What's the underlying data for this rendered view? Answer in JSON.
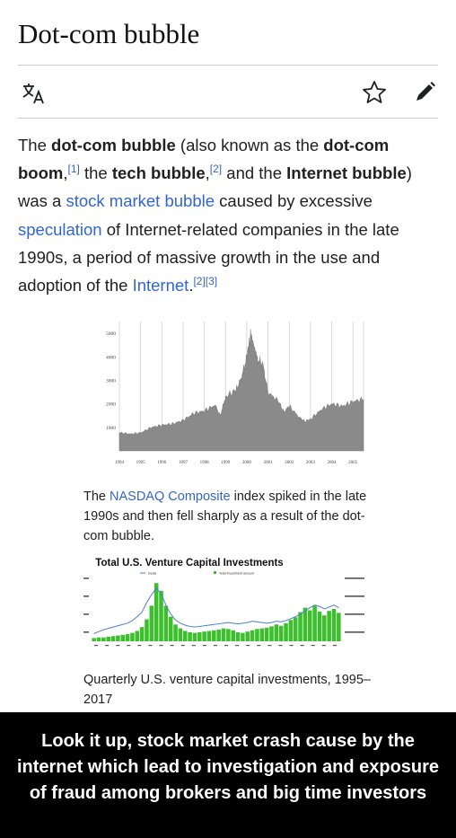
{
  "article": {
    "title": "Dot-com bubble",
    "toolbar": {
      "language_icon": "translate-icon",
      "watch_icon": "star-icon",
      "edit_icon": "pencil-icon"
    },
    "intro": {
      "p1": "The ",
      "b1": "dot-com bubble",
      "p2": " (also known as the ",
      "b2": "dot-com boom",
      "p3": ",",
      "ref1": "[1]",
      "p4": " the ",
      "b3": "tech bubble",
      "p5": ",",
      "ref2": "[2]",
      "p6": " and the ",
      "b4": "Internet bubble",
      "p7": ") was a ",
      "link1": "stock market bubble",
      "p8": " caused by excessive ",
      "link2": "speculation",
      "p9": " of Internet-related companies in the late 1990s, a period of massive growth in the use and adoption of the ",
      "link3": "Internet",
      "p10": ".",
      "ref3": "[2]",
      "ref4": "[3]"
    },
    "figure1": {
      "caption_pre": "The ",
      "caption_link": "NASDAQ Composite",
      "caption_post": " index spiked in the late 1990s and then fell sharply as a result of the dot-com bubble."
    },
    "figure2": {
      "caption": "Quarterly U.S. venture capital investments, 1995–2017"
    }
  },
  "chart_data": [
    {
      "type": "area",
      "title": "",
      "xlabel": "",
      "ylabel": "",
      "ylim": [
        0,
        5500
      ],
      "y_ticks": [
        "5000",
        "4000",
        "3000",
        "2000",
        "1000"
      ],
      "x_ticks": [
        "1994",
        "1995",
        "1996",
        "1997",
        "1998",
        "1999",
        "2000",
        "2001",
        "2002",
        "2003",
        "2004",
        "2005"
      ],
      "x": [
        1994.0,
        1994.5,
        1995.0,
        1995.5,
        1996.0,
        1996.5,
        1997.0,
        1997.5,
        1998.0,
        1998.5,
        1998.75,
        1999.0,
        1999.5,
        1999.75,
        2000.0,
        2000.2,
        2000.5,
        2000.75,
        2001.0,
        2001.5,
        2001.75,
        2002.0,
        2002.5,
        2002.75,
        2003.0,
        2003.5,
        2004.0,
        2004.5,
        2005.0,
        2005.5
      ],
      "values": [
        780,
        720,
        770,
        1000,
        1100,
        1150,
        1300,
        1600,
        1700,
        1950,
        1500,
        2300,
        2600,
        3100,
        4000,
        5000,
        3900,
        3700,
        2500,
        2100,
        1650,
        1900,
        1400,
        1250,
        1350,
        1750,
        2000,
        1900,
        2100,
        2200
      ],
      "color": "#8a8a8a"
    },
    {
      "type": "bar",
      "title": "Total U.S. Venture Capital Investments",
      "legend": [
        "Deals",
        "Total investment amount"
      ],
      "series": [
        {
          "name": "Deals",
          "color": "#4a7fc8",
          "values": [
            0.12,
            0.15,
            0.18,
            0.2,
            0.22,
            0.24,
            0.26,
            0.28,
            0.32,
            0.38,
            0.45,
            0.6,
            0.72,
            0.82,
            0.74,
            0.56,
            0.42,
            0.33,
            0.28,
            0.25,
            0.23,
            0.22,
            0.23,
            0.24,
            0.25,
            0.26,
            0.27,
            0.28,
            0.29,
            0.28,
            0.27,
            0.28,
            0.29,
            0.31,
            0.3,
            0.29,
            0.28,
            0.29,
            0.31,
            0.3,
            0.32,
            0.35,
            0.38,
            0.42,
            0.47,
            0.52,
            0.56,
            0.54,
            0.5,
            0.53,
            0.56,
            0.52
          ]
        },
        {
          "name": "Total investment amount",
          "color": "#3cbf2c",
          "values": [
            0.05,
            0.06,
            0.06,
            0.07,
            0.08,
            0.09,
            0.1,
            0.11,
            0.13,
            0.16,
            0.22,
            0.34,
            0.55,
            0.9,
            0.78,
            0.55,
            0.38,
            0.26,
            0.2,
            0.16,
            0.14,
            0.13,
            0.14,
            0.15,
            0.16,
            0.17,
            0.18,
            0.2,
            0.19,
            0.17,
            0.14,
            0.13,
            0.15,
            0.17,
            0.19,
            0.2,
            0.21,
            0.23,
            0.26,
            0.24,
            0.28,
            0.33,
            0.37,
            0.45,
            0.52,
            0.48,
            0.55,
            0.46,
            0.4,
            0.47,
            0.5,
            0.44
          ]
        }
      ]
    }
  ],
  "banner": {
    "text": "Look it up, stock market crash cause by the internet which lead to investigation and exposure of fraud among brokers and big time investors"
  }
}
